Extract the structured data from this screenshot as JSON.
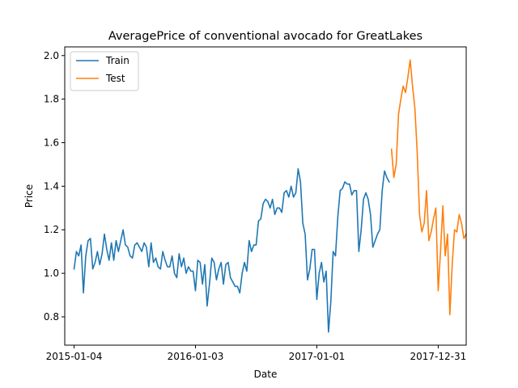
{
  "chart_data": {
    "type": "line",
    "title": "AveragePrice of conventional avocado for GreatLakes",
    "xlabel": "Date",
    "ylabel": "Price",
    "x_ticks": [
      "2015-01-04",
      "2016-01-03",
      "2017-01-01",
      "2017-12-31"
    ],
    "y_ticks": [
      "0.8",
      "1.0",
      "1.2",
      "1.4",
      "1.6",
      "1.8",
      "2.0"
    ],
    "xlim": [
      "2014-12-07",
      "2018-03-25"
    ],
    "ylim": [
      0.67,
      2.04
    ],
    "legend": {
      "placement": "top-left"
    },
    "grid": false,
    "series": [
      {
        "name": "Train",
        "color": "#1f77b4",
        "points": [
          [
            "2015-01-04",
            1.02
          ],
          [
            "2015-01-11",
            1.1
          ],
          [
            "2015-01-18",
            1.08
          ],
          [
            "2015-01-25",
            1.13
          ],
          [
            "2015-02-01",
            0.91
          ],
          [
            "2015-02-08",
            1.08
          ],
          [
            "2015-02-15",
            1.15
          ],
          [
            "2015-02-22",
            1.16
          ],
          [
            "2015-03-01",
            1.02
          ],
          [
            "2015-03-08",
            1.05
          ],
          [
            "2015-03-15",
            1.1
          ],
          [
            "2015-03-22",
            1.04
          ],
          [
            "2015-03-29",
            1.09
          ],
          [
            "2015-04-05",
            1.18
          ],
          [
            "2015-04-12",
            1.11
          ],
          [
            "2015-04-19",
            1.06
          ],
          [
            "2015-04-26",
            1.14
          ],
          [
            "2015-05-03",
            1.06
          ],
          [
            "2015-05-10",
            1.15
          ],
          [
            "2015-05-17",
            1.1
          ],
          [
            "2015-05-24",
            1.15
          ],
          [
            "2015-05-31",
            1.2
          ],
          [
            "2015-06-07",
            1.13
          ],
          [
            "2015-06-14",
            1.12
          ],
          [
            "2015-06-21",
            1.08
          ],
          [
            "2015-06-28",
            1.07
          ],
          [
            "2015-07-05",
            1.13
          ],
          [
            "2015-07-12",
            1.14
          ],
          [
            "2015-07-19",
            1.12
          ],
          [
            "2015-07-26",
            1.1
          ],
          [
            "2015-08-02",
            1.14
          ],
          [
            "2015-08-09",
            1.12
          ],
          [
            "2015-08-16",
            1.03
          ],
          [
            "2015-08-23",
            1.14
          ],
          [
            "2015-08-30",
            1.05
          ],
          [
            "2015-09-06",
            1.07
          ],
          [
            "2015-09-13",
            1.03
          ],
          [
            "2015-09-20",
            1.02
          ],
          [
            "2015-09-27",
            1.1
          ],
          [
            "2015-10-04",
            1.06
          ],
          [
            "2015-10-11",
            1.03
          ],
          [
            "2015-10-18",
            1.03
          ],
          [
            "2015-10-25",
            1.08
          ],
          [
            "2015-11-01",
            1.0
          ],
          [
            "2015-11-08",
            0.98
          ],
          [
            "2015-11-15",
            1.09
          ],
          [
            "2015-11-22",
            1.03
          ],
          [
            "2015-11-29",
            1.07
          ],
          [
            "2015-12-06",
            1.0
          ],
          [
            "2015-12-13",
            1.03
          ],
          [
            "2015-12-20",
            1.01
          ],
          [
            "2015-12-27",
            1.01
          ],
          [
            "2016-01-03",
            0.92
          ],
          [
            "2016-01-10",
            1.06
          ],
          [
            "2016-01-17",
            1.05
          ],
          [
            "2016-01-24",
            0.95
          ],
          [
            "2016-01-31",
            1.04
          ],
          [
            "2016-02-07",
            0.85
          ],
          [
            "2016-02-14",
            0.95
          ],
          [
            "2016-02-21",
            1.07
          ],
          [
            "2016-02-28",
            1.05
          ],
          [
            "2016-03-06",
            0.97
          ],
          [
            "2016-03-13",
            1.02
          ],
          [
            "2016-03-20",
            1.05
          ],
          [
            "2016-03-27",
            0.95
          ],
          [
            "2016-04-03",
            1.04
          ],
          [
            "2016-04-10",
            1.05
          ],
          [
            "2016-04-17",
            0.98
          ],
          [
            "2016-04-24",
            0.96
          ],
          [
            "2016-05-01",
            0.94
          ],
          [
            "2016-05-08",
            0.94
          ],
          [
            "2016-05-15",
            0.91
          ],
          [
            "2016-05-22",
            1.0
          ],
          [
            "2016-05-29",
            1.05
          ],
          [
            "2016-06-05",
            1.01
          ],
          [
            "2016-06-12",
            1.15
          ],
          [
            "2016-06-19",
            1.1
          ],
          [
            "2016-06-26",
            1.13
          ],
          [
            "2016-07-03",
            1.13
          ],
          [
            "2016-07-10",
            1.24
          ],
          [
            "2016-07-17",
            1.25
          ],
          [
            "2016-07-24",
            1.32
          ],
          [
            "2016-07-31",
            1.34
          ],
          [
            "2016-08-07",
            1.33
          ],
          [
            "2016-08-14",
            1.3
          ],
          [
            "2016-08-21",
            1.34
          ],
          [
            "2016-08-28",
            1.27
          ],
          [
            "2016-09-04",
            1.3
          ],
          [
            "2016-09-11",
            1.3
          ],
          [
            "2016-09-18",
            1.28
          ],
          [
            "2016-09-25",
            1.37
          ],
          [
            "2016-10-02",
            1.38
          ],
          [
            "2016-10-09",
            1.35
          ],
          [
            "2016-10-16",
            1.4
          ],
          [
            "2016-10-23",
            1.35
          ],
          [
            "2016-10-30",
            1.37
          ],
          [
            "2016-11-06",
            1.48
          ],
          [
            "2016-11-13",
            1.42
          ],
          [
            "2016-11-20",
            1.23
          ],
          [
            "2016-11-27",
            1.18
          ],
          [
            "2016-12-04",
            0.97
          ],
          [
            "2016-12-11",
            1.02
          ],
          [
            "2016-12-18",
            1.11
          ],
          [
            "2016-12-25",
            1.11
          ],
          [
            "2017-01-01",
            0.88
          ],
          [
            "2017-01-08",
            1.0
          ],
          [
            "2017-01-15",
            1.05
          ],
          [
            "2017-01-22",
            0.96
          ],
          [
            "2017-01-29",
            1.01
          ],
          [
            "2017-02-05",
            0.73
          ],
          [
            "2017-02-12",
            0.87
          ],
          [
            "2017-02-19",
            1.1
          ],
          [
            "2017-02-26",
            1.08
          ],
          [
            "2017-03-05",
            1.26
          ],
          [
            "2017-03-12",
            1.38
          ],
          [
            "2017-03-19",
            1.39
          ],
          [
            "2017-03-26",
            1.42
          ],
          [
            "2017-04-02",
            1.41
          ],
          [
            "2017-04-09",
            1.41
          ],
          [
            "2017-04-16",
            1.36
          ],
          [
            "2017-04-23",
            1.38
          ],
          [
            "2017-04-30",
            1.38
          ],
          [
            "2017-05-07",
            1.1
          ],
          [
            "2017-05-14",
            1.2
          ],
          [
            "2017-05-21",
            1.34
          ],
          [
            "2017-05-28",
            1.37
          ],
          [
            "2017-06-04",
            1.34
          ],
          [
            "2017-06-11",
            1.27
          ],
          [
            "2017-06-18",
            1.12
          ],
          [
            "2017-06-25",
            1.15
          ],
          [
            "2017-07-02",
            1.18
          ],
          [
            "2017-07-09",
            1.2
          ],
          [
            "2017-07-16",
            1.38
          ],
          [
            "2017-07-23",
            1.47
          ],
          [
            "2017-07-30",
            1.44
          ],
          [
            "2017-08-06",
            1.42
          ]
        ]
      },
      {
        "name": "Test",
        "color": "#ff7f0e",
        "points": [
          [
            "2017-08-13",
            1.57
          ],
          [
            "2017-08-20",
            1.44
          ],
          [
            "2017-08-27",
            1.5
          ],
          [
            "2017-09-03",
            1.73
          ],
          [
            "2017-09-10",
            1.8
          ],
          [
            "2017-09-17",
            1.86
          ],
          [
            "2017-09-24",
            1.83
          ],
          [
            "2017-10-01",
            1.9
          ],
          [
            "2017-10-08",
            1.98
          ],
          [
            "2017-10-15",
            1.86
          ],
          [
            "2017-10-22",
            1.76
          ],
          [
            "2017-10-29",
            1.56
          ],
          [
            "2017-11-05",
            1.27
          ],
          [
            "2017-11-12",
            1.19
          ],
          [
            "2017-11-19",
            1.23
          ],
          [
            "2017-11-26",
            1.38
          ],
          [
            "2017-12-03",
            1.15
          ],
          [
            "2017-12-10",
            1.19
          ],
          [
            "2017-12-17",
            1.25
          ],
          [
            "2017-12-24",
            1.3
          ],
          [
            "2017-12-31",
            0.92
          ],
          [
            "2018-01-07",
            1.1
          ],
          [
            "2018-01-14",
            1.31
          ],
          [
            "2018-01-21",
            1.08
          ],
          [
            "2018-01-28",
            1.18
          ],
          [
            "2018-02-04",
            0.81
          ],
          [
            "2018-02-11",
            1.04
          ],
          [
            "2018-02-18",
            1.2
          ],
          [
            "2018-02-25",
            1.19
          ],
          [
            "2018-03-04",
            1.27
          ],
          [
            "2018-03-11",
            1.23
          ],
          [
            "2018-03-18",
            1.16
          ],
          [
            "2018-03-25",
            1.18
          ]
        ]
      }
    ]
  }
}
